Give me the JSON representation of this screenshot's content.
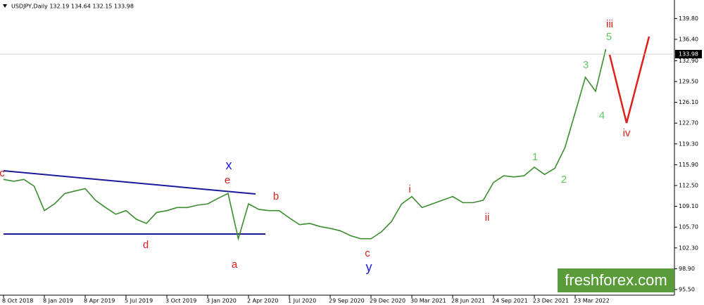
{
  "chart_data": {
    "type": "line",
    "title": "USDJPY,Daily  132.19 134.64 132.15 133.98",
    "categories": [
      "8 Oct 2018",
      null,
      null,
      null,
      "8 Jan 2019",
      null,
      null,
      null,
      "8 Apr 2019",
      null,
      null,
      null,
      "5 Jul 2019",
      null,
      null,
      null,
      "3 Oct 2019",
      null,
      null,
      null,
      "3 Jan 2020",
      null,
      null,
      null,
      "2 Apr 2020",
      null,
      null,
      null,
      "1 Jul 2020",
      null,
      null,
      null,
      "29 Sep 2020",
      null,
      null,
      null,
      "29 Dec 2020",
      null,
      null,
      null,
      "30 Mar 2021",
      null,
      null,
      null,
      "28 Jun 2021",
      null,
      null,
      null,
      "24 Sep 2021",
      null,
      null,
      null,
      "23 Dec 2021",
      null,
      null,
      null,
      "23 Mar 2022",
      null,
      null,
      null
    ],
    "series": [
      {
        "name": "USDJPY",
        "color": "#3c8d2f",
        "values": [
          113.5,
          113.2,
          113.5,
          112.4,
          108.4,
          109.5,
          111.2,
          111.6,
          112.0,
          110.1,
          108.9,
          107.8,
          108.4,
          107.0,
          106.3,
          108.1,
          108.4,
          108.9,
          108.9,
          109.3,
          109.5,
          110.4,
          111.2,
          103.8,
          109.5,
          108.6,
          108.4,
          108.4,
          107.2,
          106.1,
          106.3,
          105.8,
          105.5,
          105.1,
          104.3,
          103.8,
          103.8,
          104.9,
          106.6,
          109.5,
          110.7,
          108.9,
          109.5,
          110.1,
          110.7,
          109.7,
          109.7,
          110.1,
          113.0,
          114.1,
          113.9,
          114.1,
          115.5,
          114.3,
          115.3,
          118.7,
          124.4,
          130.2,
          127.9,
          134.8
        ]
      }
    ],
    "ylim": [
      94.58,
      142.25
    ],
    "yticks": [
      {
        "value": 95.5,
        "label": "95.50"
      },
      {
        "value": 98.9,
        "label": "98.90"
      },
      {
        "value": 102.3,
        "label": "102.30"
      },
      {
        "value": 105.7,
        "label": "105.70"
      },
      {
        "value": 109.1,
        "label": "109.10"
      },
      {
        "value": 112.5,
        "label": "112.50"
      },
      {
        "value": 115.9,
        "label": "115.90"
      },
      {
        "value": 119.3,
        "label": "119.30"
      },
      {
        "value": 122.7,
        "label": "122.70"
      },
      {
        "value": 126.1,
        "label": "126.10"
      },
      {
        "value": 129.5,
        "label": "129.50"
      },
      {
        "value": 132.9,
        "label": "132.90"
      },
      {
        "value": 136.4,
        "label": "136.40"
      },
      {
        "value": 139.8,
        "label": "139.80"
      }
    ],
    "last_price": {
      "value": 133.98,
      "label": "133.98"
    },
    "waves": [
      {
        "text": "c",
        "color": "#e0201b"
      },
      {
        "text": "x",
        "color": "#1a1adc"
      },
      {
        "text": "e",
        "color": "#e0201b"
      },
      {
        "text": "b",
        "color": "#e0201b"
      },
      {
        "text": "a",
        "color": "#e0201b"
      },
      {
        "text": "d",
        "color": "#e0201b"
      },
      {
        "text": "c",
        "color": "#e0201b"
      },
      {
        "text": "y",
        "color": "#1a1adc"
      },
      {
        "text": "i",
        "color": "#e0201b"
      },
      {
        "text": "ii",
        "color": "#e0201b"
      },
      {
        "text": "1",
        "color": "#5cc85c"
      },
      {
        "text": "2",
        "color": "#5cc85c"
      },
      {
        "text": "3",
        "color": "#5cc85c"
      },
      {
        "text": "4",
        "color": "#5cc85c"
      },
      {
        "text": "5",
        "color": "#5cc85c"
      },
      {
        "text": "iii",
        "color": "#e0201b"
      },
      {
        "text": "iv",
        "color": "#e0201b"
      }
    ],
    "watermark": "freshforex.com"
  }
}
